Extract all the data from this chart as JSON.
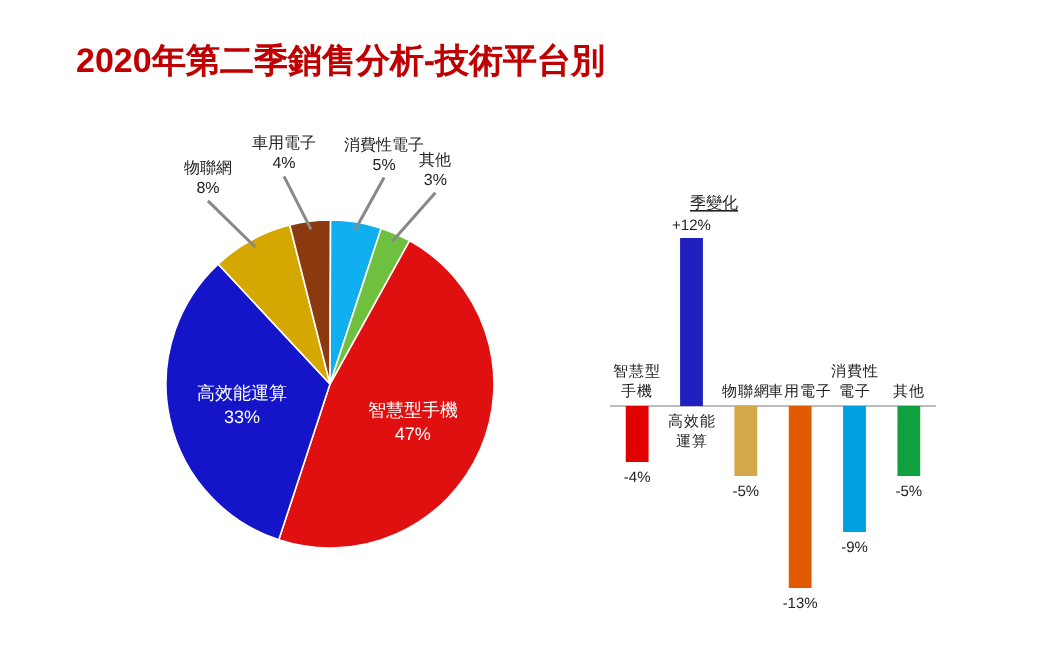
{
  "chart_data": [
    {
      "type": "pie",
      "title": "2020年第二季銷售分析-技術平台別",
      "categories": [
        "智慧型手機",
        "高效能運算",
        "物聯網",
        "車用電子",
        "消費性電子",
        "其他"
      ],
      "values": [
        47,
        33,
        8,
        4,
        5,
        3
      ],
      "colors": [
        "#e01010",
        "#1414c8",
        "#d4a800",
        "#8b3a10",
        "#10b0f0",
        "#70c040"
      ],
      "value_labels": [
        "47%",
        "33%",
        "8%",
        "4%",
        "5%",
        "3%"
      ]
    },
    {
      "type": "bar",
      "title": "季變化",
      "categories": [
        "智慧型手機",
        "高效能運算",
        "物聯網",
        "車用電子",
        "消費性電子",
        "其他"
      ],
      "values": [
        -4,
        12,
        -5,
        -13,
        -9,
        -5
      ],
      "colors": [
        "#e00000",
        "#2020c0",
        "#d4a84a",
        "#e05a00",
        "#00a0e0",
        "#10a040"
      ],
      "value_labels": [
        "-4%",
        "+12%",
        "-5%",
        "-13%",
        "-9%",
        "-5%"
      ]
    }
  ]
}
